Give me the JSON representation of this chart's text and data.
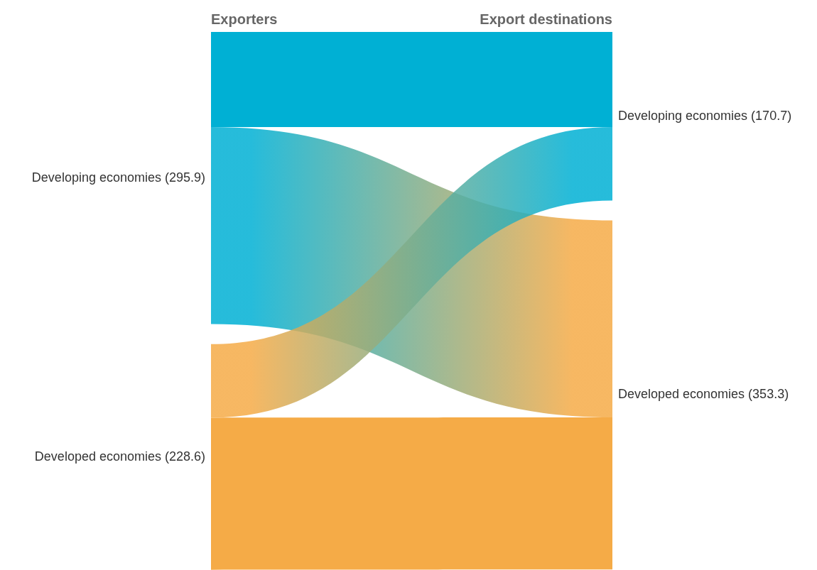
{
  "chart_data": {
    "type": "other",
    "categories": [
      "Developing economies",
      "Developed economies"
    ],
    "colors": [
      "#00b0d4",
      "#f5ab47"
    ],
    "data_labels": true,
    "annotations": [
      "(",
      ")"
    ],
    "series": [
      {
        "name": "Exporters",
        "values": [
          295.9,
          228.6
        ]
      },
      {
        "name": "Export destinations",
        "values": [
          170.7,
          353.3
        ]
      }
    ]
  }
}
